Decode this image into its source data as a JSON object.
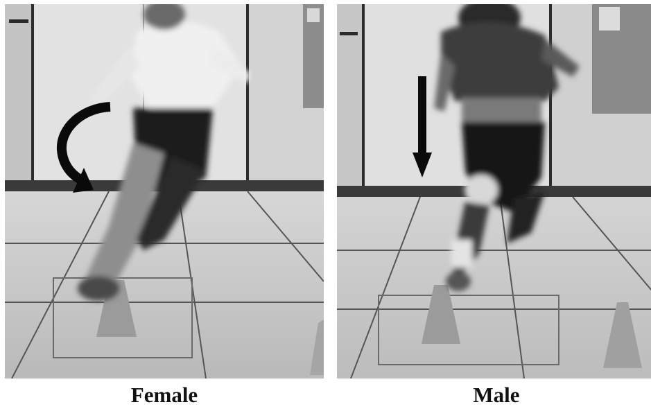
{
  "panels": [
    {
      "caption": "Female",
      "arrow_icon": "curved-arrow-icon"
    },
    {
      "caption": "Male",
      "arrow_icon": "down-arrow-icon"
    }
  ],
  "colors": {
    "background": "#ffffff",
    "caption_text": "#111111",
    "arrow": "#0a0a0a"
  }
}
